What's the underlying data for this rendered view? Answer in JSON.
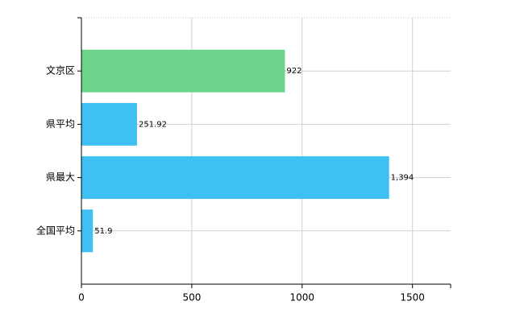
{
  "chart_data": {
    "type": "barh",
    "categories": [
      "文京区",
      "県平均",
      "県最大",
      "全国平均"
    ],
    "values": [
      922,
      251.92,
      1394,
      51.9
    ],
    "value_labels": [
      "922",
      "251.92",
      "1,394",
      "51.9"
    ],
    "colors": [
      "#6cd48a",
      "#3fc0f3",
      "#3fc0f3",
      "#3fc0f3"
    ],
    "xlim": [
      0,
      1672.8
    ],
    "xticks": [
      0,
      500,
      1000,
      1500
    ],
    "grid": true
  }
}
